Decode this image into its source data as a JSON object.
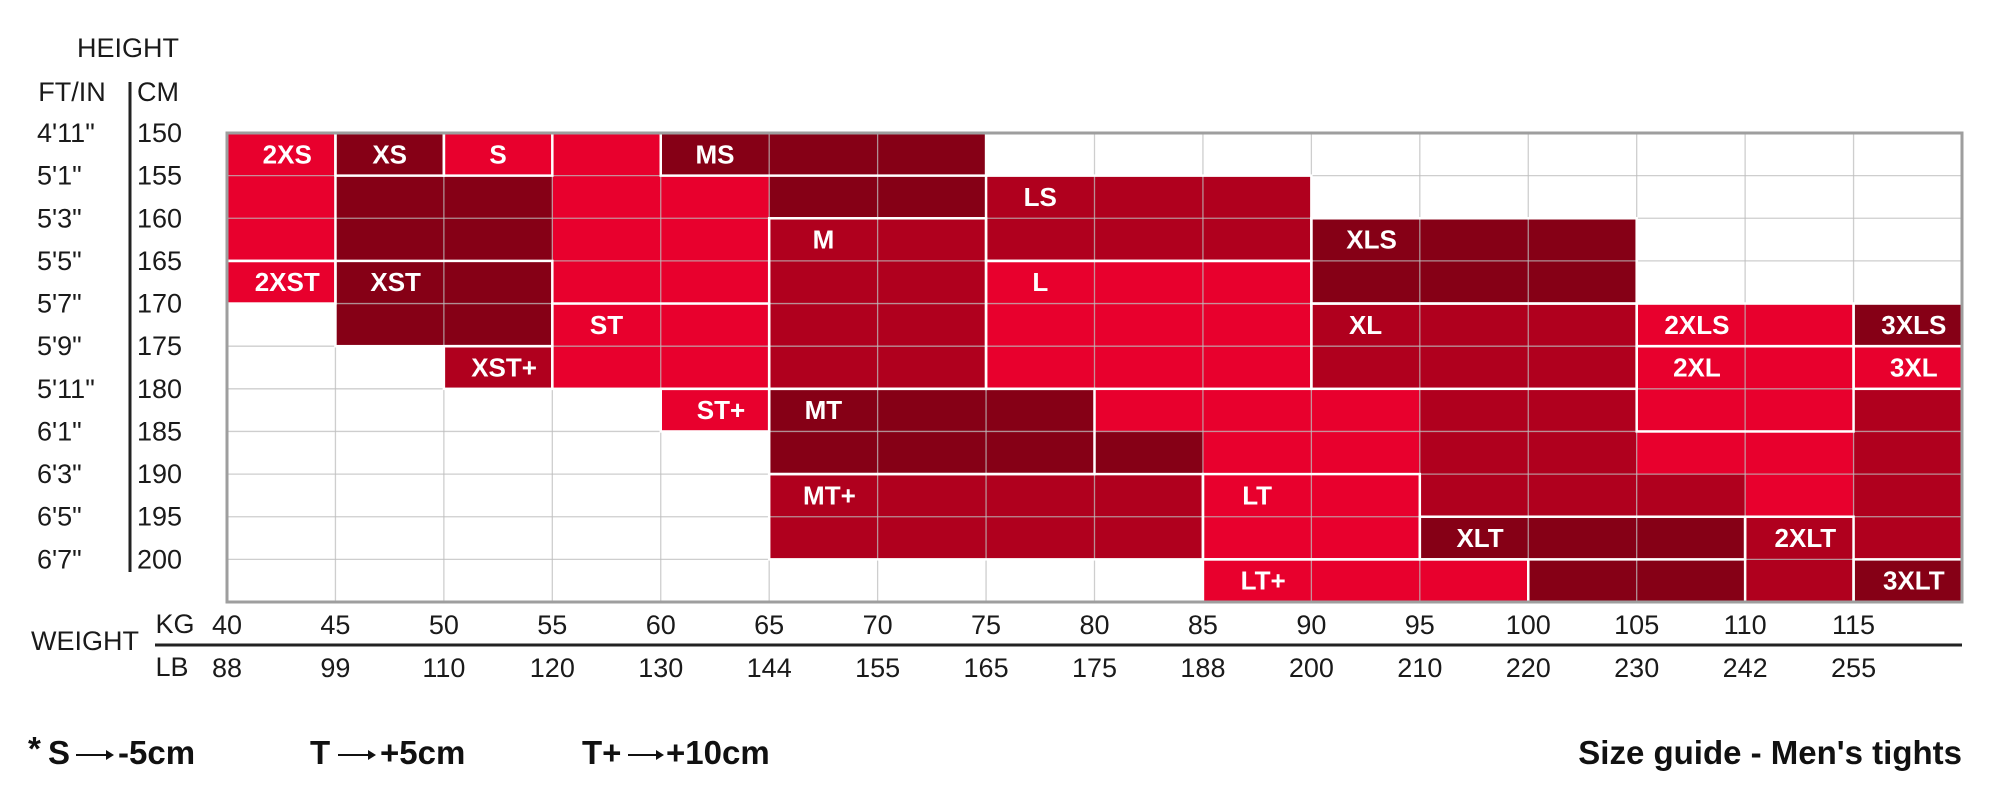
{
  "chart_data": {
    "type": "heatmap",
    "title": "Size guide - Men's tights",
    "height_label": "HEIGHT",
    "ftin_label": "FT/IN",
    "cm_label": "CM",
    "weight_label": "WEIGHT",
    "kg_label": "KG",
    "lb_label": "LB",
    "height_ft": [
      "4'11\"",
      "5'1\"",
      "5'3\"",
      "5'5\"",
      "5'7\"",
      "5'9\"",
      "5'11\"",
      "6'1\"",
      "6'3\"",
      "6'5\"",
      "6'7\""
    ],
    "height_cm": [
      "150",
      "155",
      "160",
      "165",
      "170",
      "175",
      "180",
      "185",
      "190",
      "195",
      "200"
    ],
    "weight_kg": [
      "40",
      "45",
      "50",
      "55",
      "60",
      "65",
      "70",
      "75",
      "80",
      "85",
      "90",
      "95",
      "100",
      "105",
      "110",
      "115"
    ],
    "weight_lb": [
      "88",
      "99",
      "110",
      "120",
      "130",
      "144",
      "155",
      "165",
      "175",
      "188",
      "200",
      "210",
      "220",
      "230",
      "242",
      "255"
    ],
    "kg_range": [
      40,
      120
    ],
    "cm_range": [
      150,
      205
    ],
    "colors": {
      "bright": "#e8002d",
      "medium": "#b0001e",
      "dark": "#860016",
      "empty": "#ffffff",
      "grid": "#bdbdbd"
    },
    "regions": [
      {
        "label": "2XS",
        "color": "bright",
        "kg": [
          40,
          45
        ],
        "cm": [
          150,
          165
        ]
      },
      {
        "label": "XS",
        "color": "dark",
        "kg": [
          45,
          50
        ],
        "cm": [
          150,
          155
        ]
      },
      {
        "label": "",
        "color": "dark",
        "kg": [
          45,
          55
        ],
        "cm": [
          155,
          165
        ]
      },
      {
        "label": "S",
        "color": "bright",
        "kg": [
          50,
          55
        ],
        "cm": [
          150,
          155
        ]
      },
      {
        "label": "",
        "color": "bright",
        "kg": [
          55,
          65
        ],
        "cm": [
          150,
          170
        ]
      },
      {
        "label": "MS",
        "color": "dark",
        "kg": [
          60,
          75
        ],
        "cm": [
          150,
          155
        ]
      },
      {
        "label": "",
        "color": "dark",
        "kg": [
          65,
          75
        ],
        "cm": [
          155,
          160
        ]
      },
      {
        "label": "LS",
        "color": "medium",
        "kg": [
          75,
          90
        ],
        "cm": [
          155,
          165
        ]
      },
      {
        "label": "M",
        "color": "medium",
        "kg": [
          65,
          75
        ],
        "cm": [
          160,
          180
        ]
      },
      {
        "label": "XLS",
        "color": "dark",
        "kg": [
          90,
          105
        ],
        "cm": [
          160,
          170
        ]
      },
      {
        "label": "2XST",
        "color": "bright",
        "kg": [
          40,
          45
        ],
        "cm": [
          165,
          170
        ]
      },
      {
        "label": "XST",
        "color": "dark",
        "kg": [
          45,
          55
        ],
        "cm": [
          165,
          175
        ]
      },
      {
        "label": "L",
        "color": "bright",
        "kg": [
          75,
          90
        ],
        "cm": [
          165,
          180
        ]
      },
      {
        "label": "ST",
        "color": "bright",
        "kg": [
          55,
          65
        ],
        "cm": [
          170,
          180
        ]
      },
      {
        "label": "XL",
        "color": "medium",
        "kg": [
          90,
          105
        ],
        "cm": [
          170,
          180
        ]
      },
      {
        "label": "2XLS",
        "color": "bright",
        "kg": [
          105,
          115
        ],
        "cm": [
          170,
          175
        ]
      },
      {
        "label": "3XLS",
        "color": "dark",
        "kg": [
          115,
          120
        ],
        "cm": [
          170,
          175
        ]
      },
      {
        "label": "2XL",
        "color": "bright",
        "kg": [
          105,
          115
        ],
        "cm": [
          175,
          185
        ]
      },
      {
        "label": "3XL",
        "color": "bright",
        "kg": [
          115,
          120
        ],
        "cm": [
          175,
          180
        ]
      },
      {
        "label": "XST+",
        "color": "medium",
        "kg": [
          50,
          55
        ],
        "cm": [
          175,
          180
        ]
      },
      {
        "label": "ST+",
        "color": "bright",
        "kg": [
          60,
          65
        ],
        "cm": [
          180,
          185
        ]
      },
      {
        "label": "MT",
        "color": "dark",
        "kg": [
          65,
          80
        ],
        "cm": [
          180,
          190
        ]
      },
      {
        "label": "",
        "color": "bright",
        "kg": [
          80,
          95
        ],
        "cm": [
          180,
          190
        ]
      },
      {
        "label": "",
        "color": "medium",
        "kg": [
          95,
          105
        ],
        "cm": [
          180,
          195
        ]
      },
      {
        "label": "",
        "color": "medium",
        "kg": [
          115,
          120
        ],
        "cm": [
          180,
          195
        ]
      },
      {
        "label": "",
        "color": "dark",
        "kg": [
          80,
          85
        ],
        "cm": [
          185,
          190
        ]
      },
      {
        "label": "MT+",
        "color": "medium",
        "kg": [
          65,
          85
        ],
        "cm": [
          190,
          200
        ]
      },
      {
        "label": "LT",
        "color": "bright",
        "kg": [
          85,
          95
        ],
        "cm": [
          190,
          200
        ]
      },
      {
        "label": "",
        "color": "bright",
        "kg": [
          105,
          110
        ],
        "cm": [
          185,
          190
        ]
      },
      {
        "label": "",
        "color": "bright",
        "kg": [
          110,
          115
        ],
        "cm": [
          185,
          195
        ]
      },
      {
        "label": "",
        "color": "medium",
        "kg": [
          105,
          110
        ],
        "cm": [
          190,
          195
        ]
      },
      {
        "label": "XLT",
        "color": "dark",
        "kg": [
          95,
          110
        ],
        "cm": [
          195,
          200
        ]
      },
      {
        "label": "2XLT",
        "color": "medium",
        "kg": [
          110,
          115
        ],
        "cm": [
          195,
          205
        ]
      },
      {
        "label": "",
        "color": "medium",
        "kg": [
          115,
          120
        ],
        "cm": [
          195,
          200
        ]
      },
      {
        "label": "LT+",
        "color": "bright",
        "kg": [
          85,
          100
        ],
        "cm": [
          200,
          205
        ]
      },
      {
        "label": "",
        "color": "dark",
        "kg": [
          100,
          110
        ],
        "cm": [
          200,
          205
        ]
      },
      {
        "label": "3XLT",
        "color": "dark",
        "kg": [
          115,
          120
        ],
        "cm": [
          200,
          205
        ]
      }
    ],
    "legend": [
      {
        "mark": "*",
        "key": "S",
        "value": "-5cm"
      },
      {
        "mark": "",
        "key": "T",
        "value": "+5cm"
      },
      {
        "mark": "",
        "key": "T+",
        "value": "+10cm"
      }
    ]
  }
}
